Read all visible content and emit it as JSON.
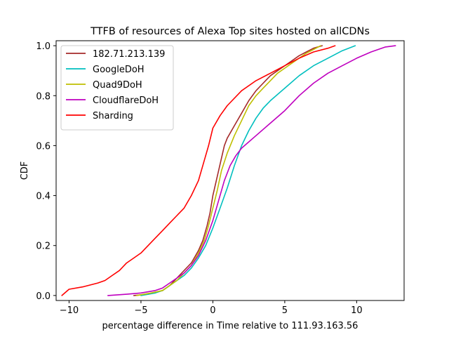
{
  "chart_data": {
    "type": "line",
    "title": "TTFB of resources of Alexa Top sites hosted on allCDNs",
    "xlabel": "percentage difference in Time relative to 111.93.163.56",
    "ylabel": "CDF",
    "xlim": [
      -10.9,
      13.3
    ],
    "ylim": [
      -0.02,
      1.02
    ],
    "xticks": [
      -10,
      -5,
      0,
      5,
      10
    ],
    "yticks": [
      0.0,
      0.2,
      0.4,
      0.6,
      0.8,
      1.0
    ],
    "xtick_labels": [
      "−10",
      "−5",
      "0",
      "5",
      "10"
    ],
    "ytick_labels": [
      "0.0",
      "0.2",
      "0.4",
      "0.6",
      "0.8",
      "1.0"
    ],
    "grid": false,
    "legend_position": "top-left",
    "series": [
      {
        "name": "182.71.213.139",
        "color": "#a52a2a",
        "points": [
          [
            -5.5,
            0
          ],
          [
            -4.5,
            0.005
          ],
          [
            -3.5,
            0.02
          ],
          [
            -3,
            0.04
          ],
          [
            -2.5,
            0.07
          ],
          [
            -2,
            0.1
          ],
          [
            -1.5,
            0.13
          ],
          [
            -1,
            0.18
          ],
          [
            -0.7,
            0.22
          ],
          [
            -0.4,
            0.28
          ],
          [
            -0.2,
            0.33
          ],
          [
            0,
            0.4
          ],
          [
            0.2,
            0.45
          ],
          [
            0.4,
            0.5
          ],
          [
            0.6,
            0.55
          ],
          [
            0.8,
            0.6
          ],
          [
            1,
            0.63
          ],
          [
            1.5,
            0.68
          ],
          [
            2,
            0.73
          ],
          [
            2.5,
            0.78
          ],
          [
            3,
            0.82
          ],
          [
            3.5,
            0.85
          ],
          [
            4,
            0.88
          ],
          [
            4.5,
            0.9
          ],
          [
            5,
            0.92
          ],
          [
            5.5,
            0.94
          ],
          [
            6,
            0.96
          ],
          [
            6.5,
            0.975
          ],
          [
            7,
            0.99
          ],
          [
            7.6,
            1.0
          ]
        ]
      },
      {
        "name": "GoogleDoH",
        "color": "#00bfbf",
        "points": [
          [
            -5,
            0
          ],
          [
            -4,
            0.01
          ],
          [
            -3.5,
            0.02
          ],
          [
            -3,
            0.04
          ],
          [
            -2.5,
            0.06
          ],
          [
            -2,
            0.08
          ],
          [
            -1.5,
            0.11
          ],
          [
            -1,
            0.15
          ],
          [
            -0.5,
            0.2
          ],
          [
            0,
            0.27
          ],
          [
            0.5,
            0.35
          ],
          [
            1,
            0.43
          ],
          [
            1.5,
            0.52
          ],
          [
            2,
            0.6
          ],
          [
            2.5,
            0.66
          ],
          [
            3,
            0.71
          ],
          [
            3.5,
            0.75
          ],
          [
            4,
            0.78
          ],
          [
            5,
            0.83
          ],
          [
            6,
            0.88
          ],
          [
            7,
            0.92
          ],
          [
            8,
            0.95
          ],
          [
            9,
            0.98
          ],
          [
            9.9,
            1.0
          ]
        ]
      },
      {
        "name": "Quad9DoH",
        "color": "#bfbf00",
        "points": [
          [
            -5.3,
            0
          ],
          [
            -4.3,
            0.01
          ],
          [
            -3.5,
            0.02
          ],
          [
            -3,
            0.04
          ],
          [
            -2.5,
            0.06
          ],
          [
            -2,
            0.09
          ],
          [
            -1.5,
            0.12
          ],
          [
            -1,
            0.17
          ],
          [
            -0.6,
            0.22
          ],
          [
            -0.3,
            0.28
          ],
          [
            0,
            0.35
          ],
          [
            0.3,
            0.42
          ],
          [
            0.6,
            0.5
          ],
          [
            1,
            0.57
          ],
          [
            1.5,
            0.64
          ],
          [
            2,
            0.7
          ],
          [
            2.5,
            0.76
          ],
          [
            3,
            0.8
          ],
          [
            3.5,
            0.83
          ],
          [
            4,
            0.86
          ],
          [
            4.5,
            0.89
          ],
          [
            5,
            0.91
          ],
          [
            5.5,
            0.93
          ],
          [
            6,
            0.95
          ],
          [
            6.5,
            0.97
          ],
          [
            7,
            0.985
          ],
          [
            7.5,
            1.0
          ]
        ]
      },
      {
        "name": "CloudflareDoH",
        "color": "#bf00bf",
        "points": [
          [
            -7.3,
            0
          ],
          [
            -6,
            0.005
          ],
          [
            -5,
            0.01
          ],
          [
            -4,
            0.02
          ],
          [
            -3.5,
            0.03
          ],
          [
            -3,
            0.05
          ],
          [
            -2.5,
            0.07
          ],
          [
            -2,
            0.09
          ],
          [
            -1.5,
            0.12
          ],
          [
            -1,
            0.16
          ],
          [
            -0.5,
            0.22
          ],
          [
            0,
            0.3
          ],
          [
            0.4,
            0.38
          ],
          [
            0.8,
            0.46
          ],
          [
            1.2,
            0.52
          ],
          [
            1.6,
            0.56
          ],
          [
            2,
            0.59
          ],
          [
            3,
            0.64
          ],
          [
            4,
            0.69
          ],
          [
            5,
            0.74
          ],
          [
            6,
            0.8
          ],
          [
            7,
            0.85
          ],
          [
            8,
            0.89
          ],
          [
            9,
            0.92
          ],
          [
            10,
            0.95
          ],
          [
            11,
            0.975
          ],
          [
            12,
            0.995
          ],
          [
            12.7,
            1.0
          ]
        ]
      },
      {
        "name": "Sharding",
        "color": "#ff0000",
        "points": [
          [
            -10.5,
            0
          ],
          [
            -10,
            0.025
          ],
          [
            -9,
            0.035
          ],
          [
            -8,
            0.05
          ],
          [
            -7.5,
            0.06
          ],
          [
            -7,
            0.08
          ],
          [
            -6.5,
            0.1
          ],
          [
            -6,
            0.13
          ],
          [
            -5.5,
            0.15
          ],
          [
            -5,
            0.17
          ],
          [
            -4.5,
            0.2
          ],
          [
            -4,
            0.23
          ],
          [
            -3.5,
            0.26
          ],
          [
            -3,
            0.29
          ],
          [
            -2.5,
            0.32
          ],
          [
            -2,
            0.35
          ],
          [
            -1.5,
            0.4
          ],
          [
            -1,
            0.46
          ],
          [
            -0.6,
            0.54
          ],
          [
            -0.3,
            0.6
          ],
          [
            0,
            0.67
          ],
          [
            0.5,
            0.72
          ],
          [
            1,
            0.76
          ],
          [
            2,
            0.82
          ],
          [
            3,
            0.86
          ],
          [
            4,
            0.89
          ],
          [
            5,
            0.92
          ],
          [
            6,
            0.95
          ],
          [
            7,
            0.975
          ],
          [
            8,
            0.99
          ],
          [
            8.5,
            1.0
          ]
        ]
      }
    ]
  }
}
